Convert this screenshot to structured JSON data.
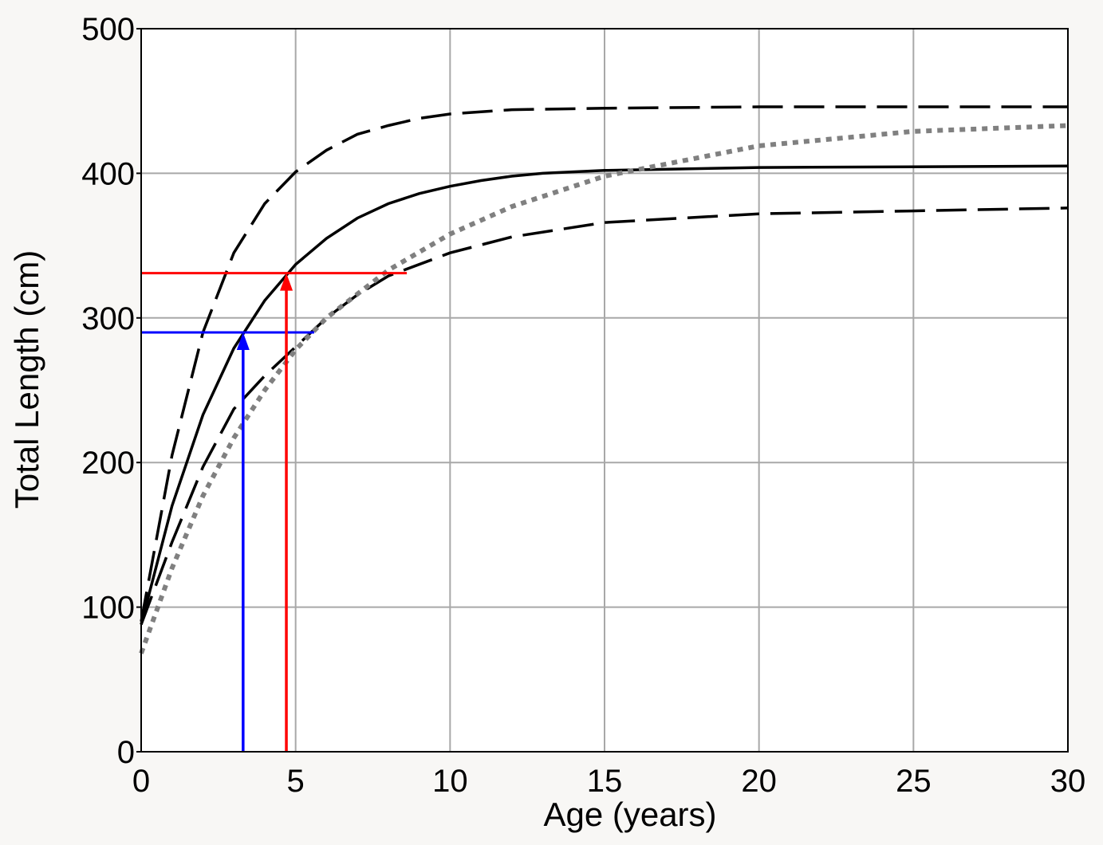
{
  "chart_data": {
    "type": "line",
    "title": "",
    "xlabel": "Age (years)",
    "ylabel": "Total Length (cm)",
    "xlim": [
      0,
      30
    ],
    "ylim": [
      0,
      500
    ],
    "xticks": [
      0,
      5,
      10,
      15,
      20,
      25,
      30
    ],
    "yticks": [
      0,
      100,
      200,
      300,
      400,
      500
    ],
    "grid": true,
    "series": [
      {
        "style": "solid",
        "color": "#000000",
        "x": [
          0,
          1,
          2,
          3,
          4,
          5,
          6,
          7,
          8,
          9,
          10,
          11,
          12,
          13,
          15,
          20,
          30
        ],
        "y": [
          88,
          170,
          233,
          279,
          312,
          337,
          355,
          369,
          379,
          386,
          391,
          395,
          398,
          400,
          402,
          404,
          405
        ]
      },
      {
        "style": "dashed",
        "color": "#000000",
        "x": [
          0,
          1,
          2,
          3,
          4,
          5,
          6,
          7,
          8,
          9,
          10,
          12,
          15,
          20,
          30
        ],
        "y": [
          90,
          205,
          290,
          345,
          379,
          401,
          416,
          427,
          433,
          438,
          441,
          444,
          445,
          446,
          446
        ]
      },
      {
        "style": "dashed",
        "color": "#000000",
        "x": [
          0,
          1,
          2,
          3,
          4,
          5,
          6,
          7,
          8,
          10,
          12,
          15,
          20,
          30
        ],
        "y": [
          88,
          145,
          197,
          237,
          260,
          280,
          300,
          316,
          329,
          345,
          356,
          366,
          372,
          376
        ]
      },
      {
        "style": "dotted",
        "color": "#808080",
        "x": [
          0,
          1,
          2,
          3,
          4,
          5,
          6,
          8,
          10,
          12,
          15,
          20,
          25,
          30
        ],
        "y": [
          68,
          127,
          177,
          217,
          250,
          278,
          300,
          333,
          358,
          377,
          398,
          419,
          429,
          433
        ]
      }
    ],
    "annotations": [
      {
        "color": "#0000ff",
        "age": 3.3,
        "length": 290,
        "line_end_age": 5.6
      },
      {
        "color": "#ff0000",
        "age": 4.7,
        "length": 331,
        "line_end_age": 8.6
      }
    ]
  }
}
